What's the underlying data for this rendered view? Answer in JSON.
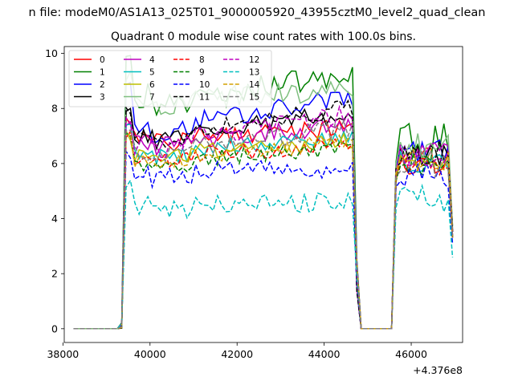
{
  "figure": {
    "suptitle": "n file: modeM0/AS1A13_025T01_9000005920_43955cztM0_level2_quad_clean",
    "title": "Quadrant 0 module wise count rates with 100.0s bins.",
    "offset_label": "+4.376e8"
  },
  "chart_data": {
    "type": "line",
    "title": "Quadrant 0 module wise count rates with 100.0s bins.",
    "xlabel": "",
    "ylabel": "",
    "x_offset": 437600000,
    "xlim": [
      38030,
      47180
    ],
    "ylim": [
      -0.5,
      10.25
    ],
    "xticks": [
      38000,
      40000,
      42000,
      44000,
      46000
    ],
    "xtick_labels": [
      "38000",
      "40000",
      "42000",
      "44000",
      "46000"
    ],
    "yticks": [
      0,
      2,
      4,
      6,
      8,
      10
    ],
    "ytick_labels": [
      "0",
      "2",
      "4",
      "6",
      "8",
      "10"
    ],
    "grid": false,
    "legend_position": "top-left",
    "legend_columns": 4,
    "series": [
      {
        "name": "0",
        "color": "#ff0000",
        "style": "solid",
        "gap": 6.9,
        "seg1": 7.3,
        "seg2": 6.1,
        "peak": 7.6,
        "amp": 0.35
      },
      {
        "name": "1",
        "color": "#008000",
        "style": "solid",
        "gap": 8.5,
        "seg1": 9.1,
        "seg2": 6.8,
        "peak": 9.8,
        "amp": 0.5
      },
      {
        "name": "2",
        "color": "#0000ff",
        "style": "solid",
        "gap": 7.2,
        "seg1": 8.4,
        "seg2": 6.5,
        "peak": 8.9,
        "amp": 0.35
      },
      {
        "name": "3",
        "color": "#000000",
        "style": "solid",
        "gap": 7.0,
        "seg1": 7.8,
        "seg2": 6.4,
        "peak": 7.9,
        "amp": 0.35
      },
      {
        "name": "4",
        "color": "#bf00bf",
        "style": "solid",
        "gap": 6.8,
        "seg1": 7.3,
        "seg2": 6.4,
        "peak": 7.5,
        "amp": 0.35
      },
      {
        "name": "5",
        "color": "#00bfbf",
        "style": "solid",
        "gap": 6.4,
        "seg1": 6.9,
        "seg2": 6.1,
        "peak": 7.5,
        "amp": 0.3
      },
      {
        "name": "6",
        "color": "#bfbf00",
        "style": "solid",
        "gap": 6.3,
        "seg1": 6.8,
        "seg2": 6.0,
        "peak": 7.0,
        "amp": 0.3
      },
      {
        "name": "7",
        "color": "#7fbf7f",
        "style": "solid",
        "gap": 8.3,
        "seg1": 8.6,
        "seg2": 6.6,
        "peak": 9.2,
        "amp": 0.4
      },
      {
        "name": "8",
        "color": "#ff0000",
        "style": "dashed",
        "gap": 6.2,
        "seg1": 6.7,
        "seg2": 6.0,
        "peak": 7.1,
        "amp": 0.3
      },
      {
        "name": "9",
        "color": "#008000",
        "style": "dashed",
        "gap": 6.0,
        "seg1": 6.6,
        "seg2": 6.0,
        "peak": 7.0,
        "amp": 0.3
      },
      {
        "name": "10",
        "color": "#0000ff",
        "style": "dashed",
        "gap": 5.7,
        "seg1": 5.8,
        "seg2": 5.6,
        "peak": 6.3,
        "amp": 0.35
      },
      {
        "name": "11",
        "color": "#000000",
        "style": "dashed",
        "gap": 6.8,
        "seg1": 8.1,
        "seg2": 6.4,
        "peak": 8.0,
        "amp": 0.35
      },
      {
        "name": "12",
        "color": "#bf00bf",
        "style": "dashed",
        "gap": 6.6,
        "seg1": 7.8,
        "seg2": 6.2,
        "peak": 7.6,
        "amp": 0.35
      },
      {
        "name": "13",
        "color": "#00bfbf",
        "style": "dashed",
        "gap": 4.5,
        "seg1": 4.6,
        "seg2": 4.7,
        "peak": 5.2,
        "amp": 0.35
      },
      {
        "name": "14",
        "color": "#d4a000",
        "style": "dashed",
        "gap": 6.1,
        "seg1": 6.8,
        "seg2": 6.1,
        "peak": 7.0,
        "amp": 0.3
      },
      {
        "name": "15",
        "color": "#808080",
        "style": "dashed",
        "gap": 6.3,
        "seg1": 7.3,
        "seg2": 6.0,
        "peak": 7.2,
        "amp": 0.35
      }
    ]
  }
}
